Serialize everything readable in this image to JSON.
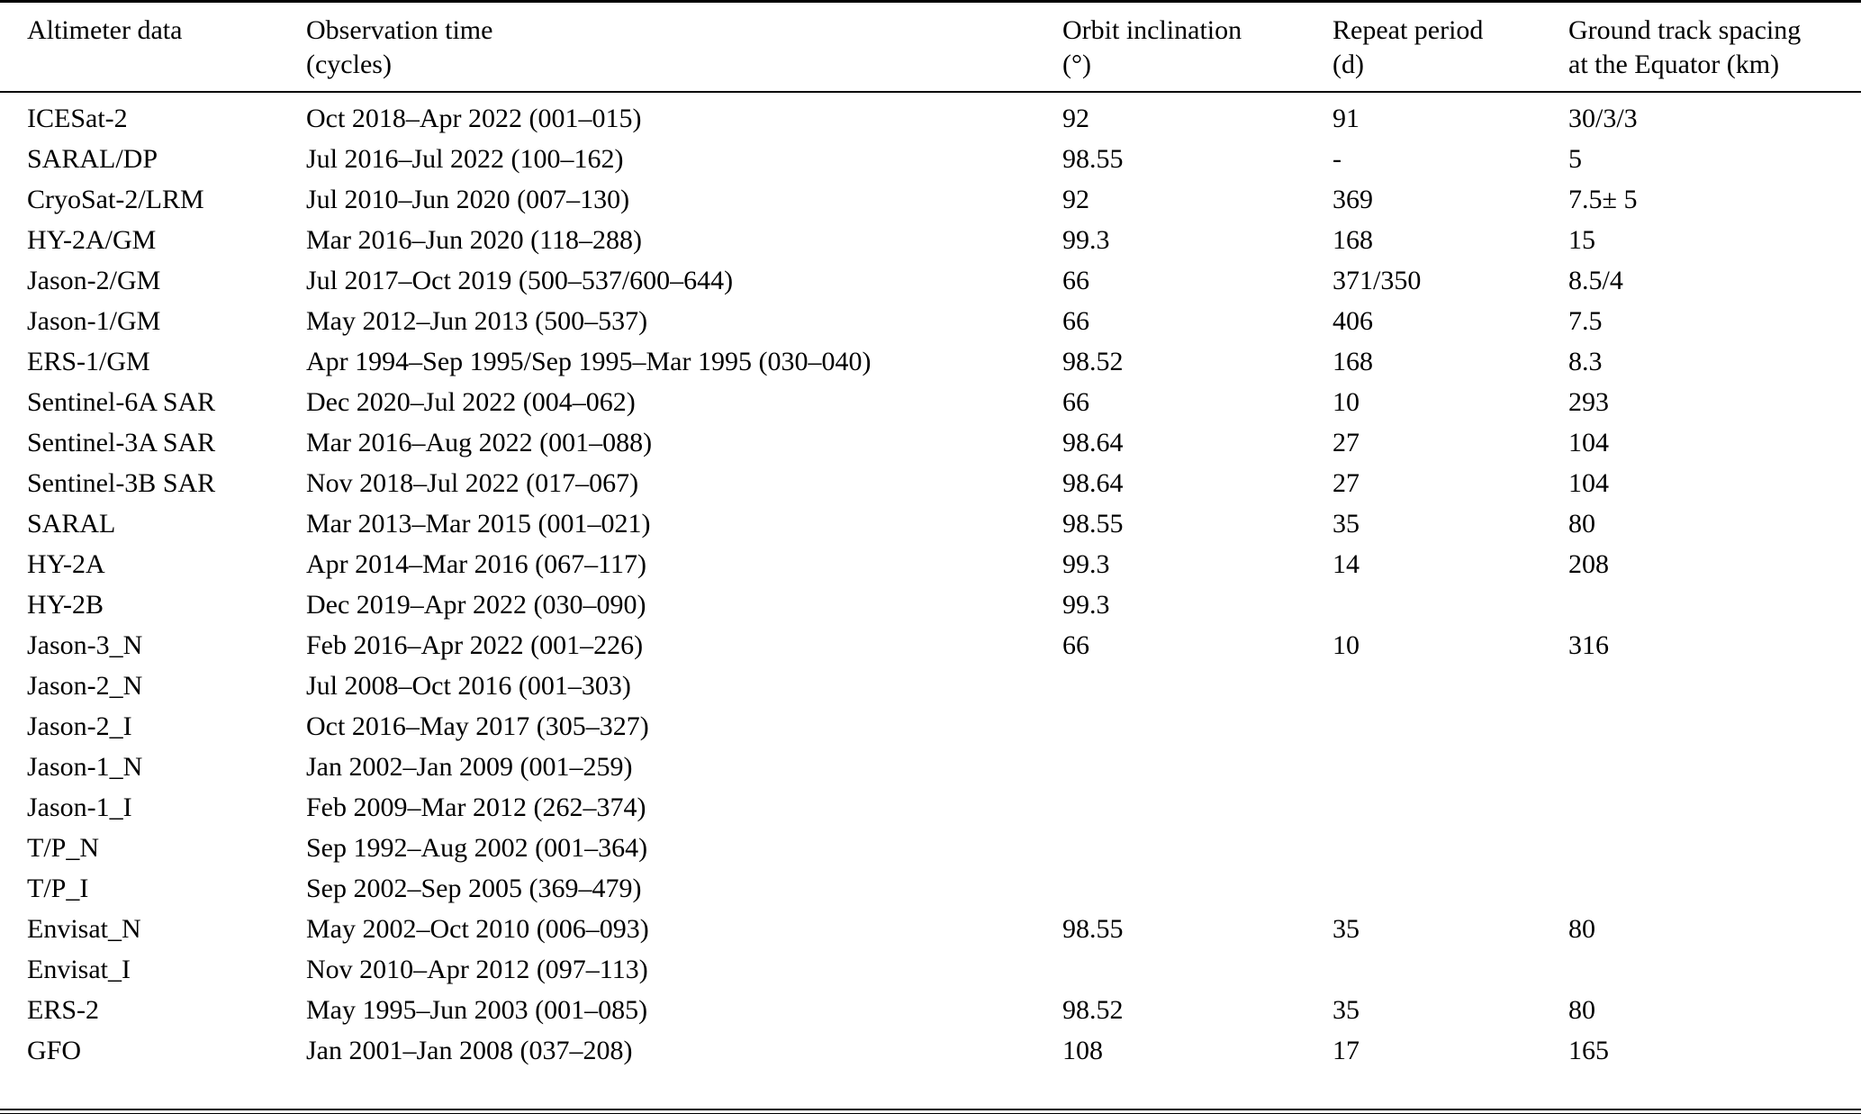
{
  "page": {
    "background_color": "#ffffff",
    "text_color": "#000000"
  },
  "table": {
    "columns": [
      {
        "line1": "Altimeter data",
        "line2": ""
      },
      {
        "line1": "Observation time",
        "line2": "(cycles)"
      },
      {
        "line1": "Orbit inclination",
        "line2": "(°)"
      },
      {
        "line1": "Repeat period",
        "line2": "(d)"
      },
      {
        "line1": "Ground track spacing",
        "line2": "at the Equator (km)"
      }
    ],
    "column_keys": [
      "altimeter-data",
      "observation-time",
      "orbit-inclination",
      "repeat-period",
      "ground-track-spacing"
    ],
    "rows": [
      [
        "ICESat-2",
        "Oct 2018–Apr 2022 (001–015)",
        "92",
        "91",
        "30/3/3"
      ],
      [
        "SARAL/DP",
        "Jul 2016–Jul 2022 (100–162)",
        "98.55",
        "-",
        "5"
      ],
      [
        "CryoSat-2/LRM",
        "Jul 2010–Jun 2020 (007–130)",
        "92",
        "369",
        "7.5± 5"
      ],
      [
        "HY-2A/GM",
        "Mar 2016–Jun 2020 (118–288)",
        "99.3",
        "168",
        "15"
      ],
      [
        "Jason-2/GM",
        "Jul 2017–Oct 2019 (500–537/600–644)",
        "66",
        "371/350",
        "8.5/4"
      ],
      [
        "Jason-1/GM",
        "May 2012–Jun 2013 (500–537)",
        "66",
        "406",
        "7.5"
      ],
      [
        "ERS-1/GM",
        "Apr 1994–Sep 1995/Sep 1995–Mar 1995 (030–040)",
        "98.52",
        "168",
        "8.3"
      ],
      [
        "Sentinel-6A SAR",
        "Dec 2020–Jul 2022 (004–062)",
        "66",
        "10",
        "293"
      ],
      [
        "Sentinel-3A SAR",
        "Mar 2016–Aug 2022 (001–088)",
        "98.64",
        "27",
        "104"
      ],
      [
        "Sentinel-3B SAR",
        "Nov 2018–Jul 2022 (017–067)",
        "98.64",
        "27",
        "104"
      ],
      [
        "SARAL",
        "Mar 2013–Mar 2015 (001–021)",
        "98.55",
        "35",
        "80"
      ],
      [
        "HY-2A",
        "Apr 2014–Mar 2016 (067–117)",
        "99.3",
        "14",
        "208"
      ],
      [
        "HY-2B",
        "Dec 2019–Apr 2022 (030–090)",
        "99.3",
        "",
        ""
      ],
      [
        "Jason-3_N",
        "Feb 2016–Apr 2022 (001–226)",
        "66",
        "10",
        "316"
      ],
      [
        "Jason-2_N",
        "Jul 2008–Oct 2016 (001–303)",
        "",
        "",
        ""
      ],
      [
        "Jason-2_I",
        "Oct 2016–May 2017 (305–327)",
        "",
        "",
        ""
      ],
      [
        "Jason-1_N",
        "Jan 2002–Jan 2009 (001–259)",
        "",
        "",
        ""
      ],
      [
        "Jason-1_I",
        "Feb 2009–Mar 2012 (262–374)",
        "",
        "",
        ""
      ],
      [
        "T/P_N",
        "Sep 1992–Aug 2002 (001–364)",
        "",
        "",
        ""
      ],
      [
        "T/P_I",
        "Sep 2002–Sep 2005 (369–479)",
        "",
        "",
        ""
      ],
      [
        "Envisat_N",
        "May 2002–Oct 2010 (006–093)",
        "98.55",
        "35",
        "80"
      ],
      [
        "Envisat_I",
        "Nov 2010–Apr 2012 (097–113)",
        "",
        "",
        ""
      ],
      [
        "ERS-2",
        "May 1995–Jun 2003 (001–085)",
        "98.52",
        "35",
        "80"
      ],
      [
        "GFO",
        "Jan 2001–Jan 2008 (037–208)",
        "108",
        "17",
        "165"
      ]
    ]
  }
}
